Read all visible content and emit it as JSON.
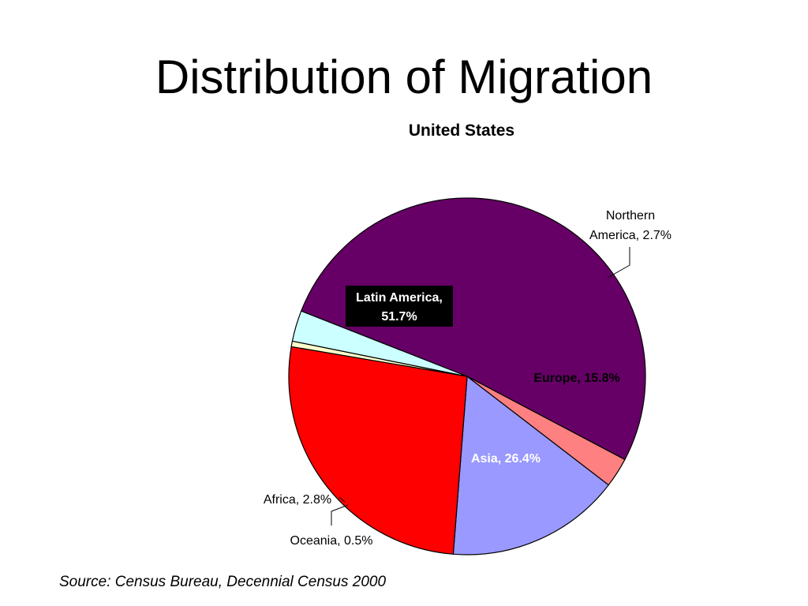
{
  "slide": {
    "title": "Distribution of Migration",
    "source": "Source: Census Bureau, Decennial Census 2000"
  },
  "chart_data": {
    "type": "pie",
    "title": "United States",
    "slices": [
      {
        "label": "Latin America",
        "label_text_line1": "Latin America,",
        "label_text_line2": "51.7%",
        "value": 51.7,
        "color": "#660066"
      },
      {
        "label": "Northern America",
        "label_text_line1": "Northern",
        "label_text_line2": "America, 2.7%",
        "value": 2.7,
        "color": "#ff8080"
      },
      {
        "label": "Europe",
        "label_text": "Europe, 15.8%",
        "value": 15.8,
        "color": "#9999ff"
      },
      {
        "label": "Asia",
        "label_text": "Asia, 26.4%",
        "value": 26.4,
        "color": "#ff0000"
      },
      {
        "label": "Oceania",
        "label_text": "Oceania, 0.5%",
        "value": 0.5,
        "color": "#ffffcc"
      },
      {
        "label": "Africa",
        "label_text": "Africa, 2.8%",
        "value": 2.8,
        "color": "#ccffff"
      }
    ],
    "legend": "none"
  }
}
